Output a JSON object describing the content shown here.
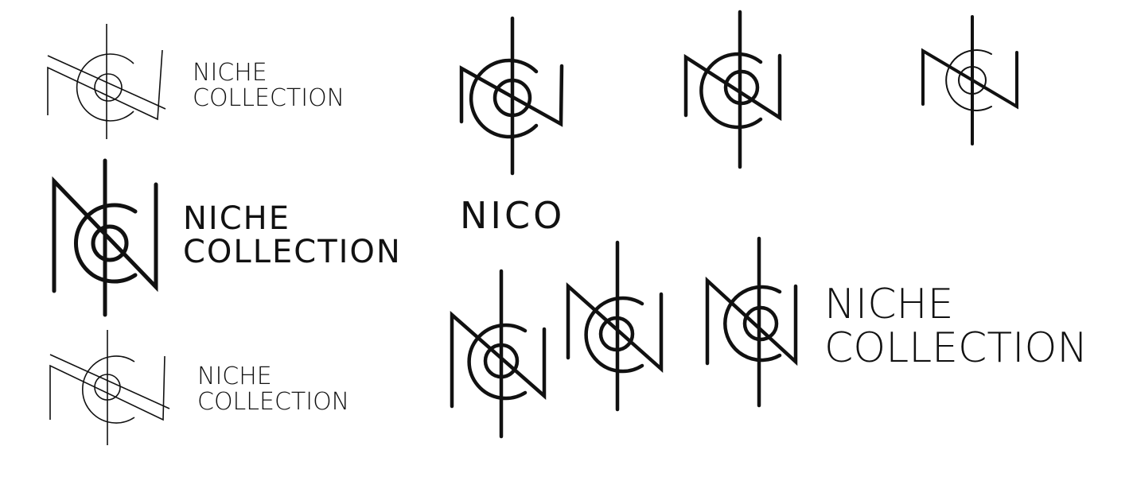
{
  "canvas": {
    "background": "#ffffff"
  },
  "brand": {
    "wordmark_line1": "NICHE",
    "wordmark_line2": "COLLECTION",
    "short_name": "NICO"
  },
  "logo_variants": [
    {
      "id": "thin-outline-top-left",
      "has_wordmark": true
    },
    {
      "id": "bold-top-left",
      "has_wordmark": true
    },
    {
      "id": "thin-outline-bottom-left",
      "has_wordmark": true
    },
    {
      "id": "standalone-1",
      "has_wordmark": false
    },
    {
      "id": "standalone-2",
      "has_wordmark": false
    },
    {
      "id": "standalone-3",
      "has_wordmark": false
    },
    {
      "id": "nico-wordmark",
      "has_wordmark": true
    },
    {
      "id": "standalone-4",
      "has_wordmark": false
    },
    {
      "id": "standalone-5",
      "has_wordmark": false
    },
    {
      "id": "bold-right",
      "has_wordmark": true
    }
  ],
  "colors": {
    "ink": "#111111"
  }
}
